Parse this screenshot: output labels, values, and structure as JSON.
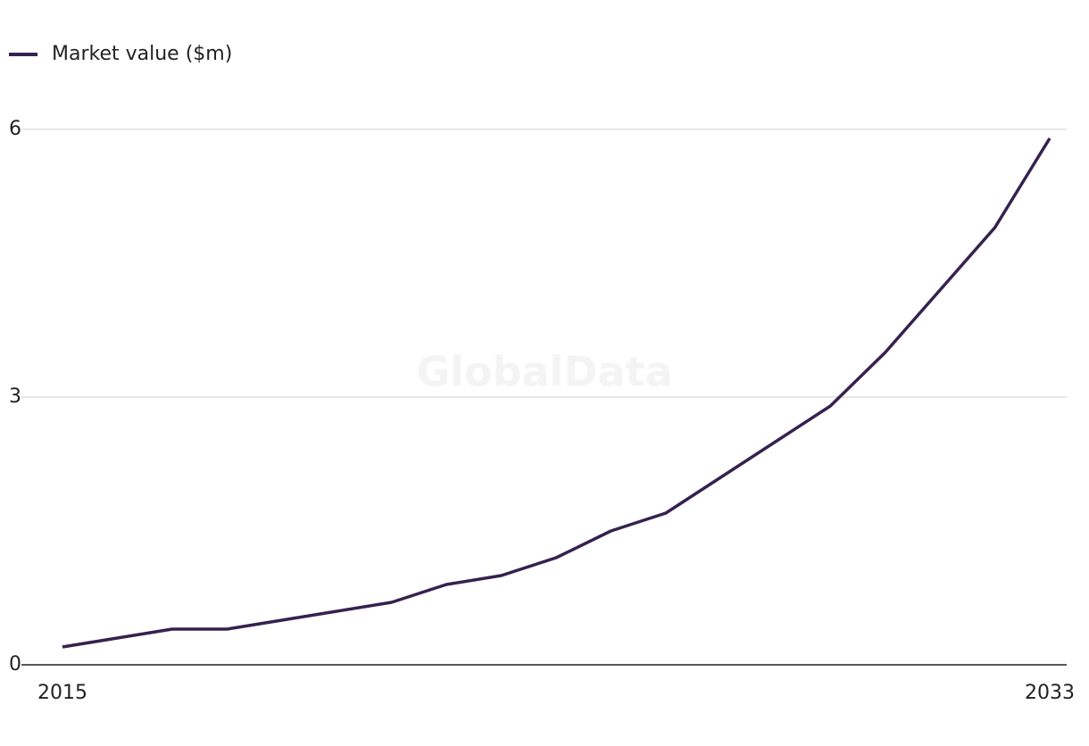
{
  "chart_data": {
    "type": "line",
    "watermark": "GlobalData",
    "x": [
      2015,
      2016,
      2017,
      2018,
      2019,
      2020,
      2021,
      2022,
      2023,
      2024,
      2025,
      2026,
      2027,
      2028,
      2029,
      2030,
      2031,
      2032,
      2033
    ],
    "series": [
      {
        "name": "Market value ($m)",
        "color": "#35224f",
        "values": [
          0.2,
          0.3,
          0.4,
          0.4,
          0.5,
          0.6,
          0.7,
          0.9,
          1.0,
          1.2,
          1.5,
          1.7,
          2.1,
          2.5,
          2.9,
          3.5,
          4.2,
          4.9,
          5.9
        ]
      }
    ],
    "xlim": [
      2015,
      2033
    ],
    "xticks": [
      2015,
      2033
    ],
    "ylim": [
      0,
      6
    ],
    "yticks": [
      0,
      3,
      6
    ],
    "grid": true,
    "legend": "top-left"
  }
}
